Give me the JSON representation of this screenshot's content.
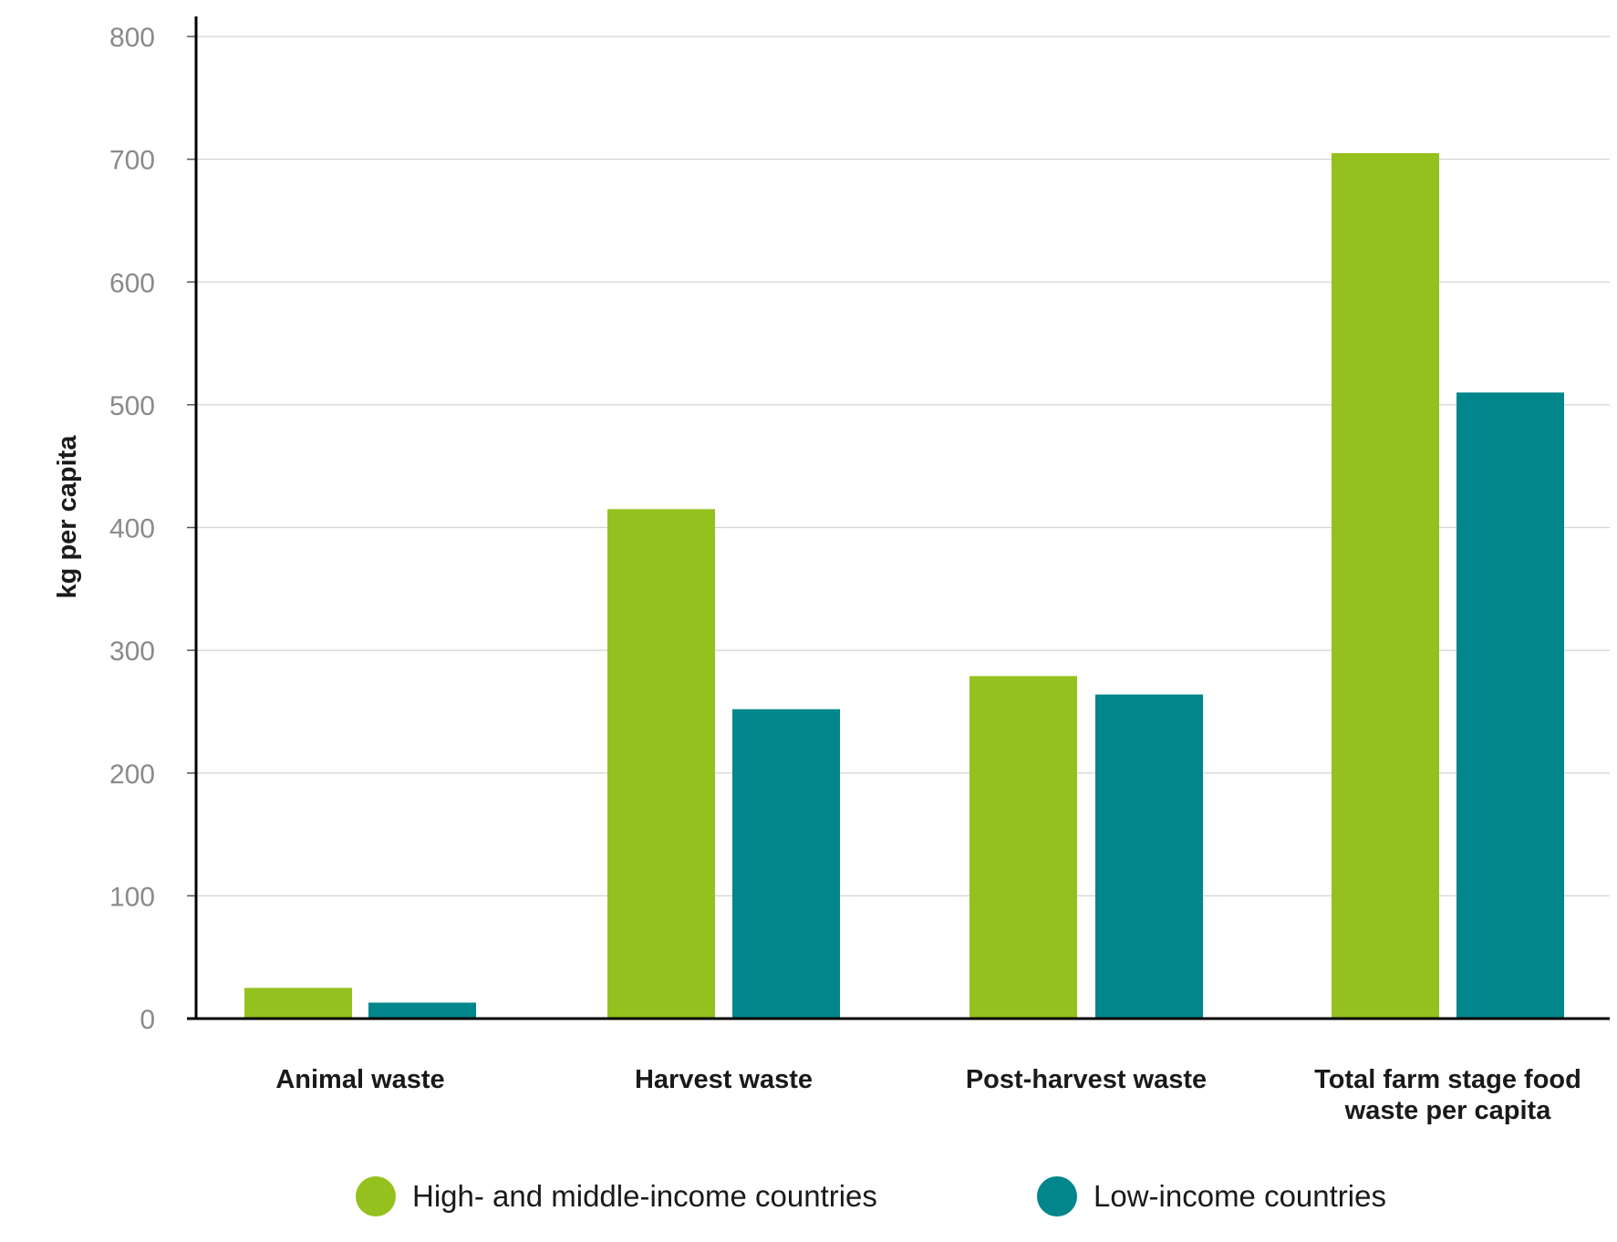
{
  "chart_data": {
    "type": "bar",
    "categories": [
      [
        "Animal waste"
      ],
      [
        "Harvest waste"
      ],
      [
        "Post-harvest waste"
      ],
      [
        "Total farm stage food",
        "waste per capita"
      ]
    ],
    "series": [
      {
        "name": "High- and middle-income countries",
        "color": "#95c11f",
        "values": [
          25,
          415,
          279,
          705
        ]
      },
      {
        "name": "Low-income countries",
        "color": "#00868b",
        "values": [
          13,
          252,
          264,
          510
        ]
      }
    ],
    "ylabel": "kg per capita",
    "xlabel": "",
    "title": "",
    "ylim": [
      0,
      800
    ],
    "yticks": [
      0,
      100,
      200,
      300,
      400,
      500,
      600,
      700,
      800
    ],
    "grid": true,
    "legend_position": "bottom"
  }
}
